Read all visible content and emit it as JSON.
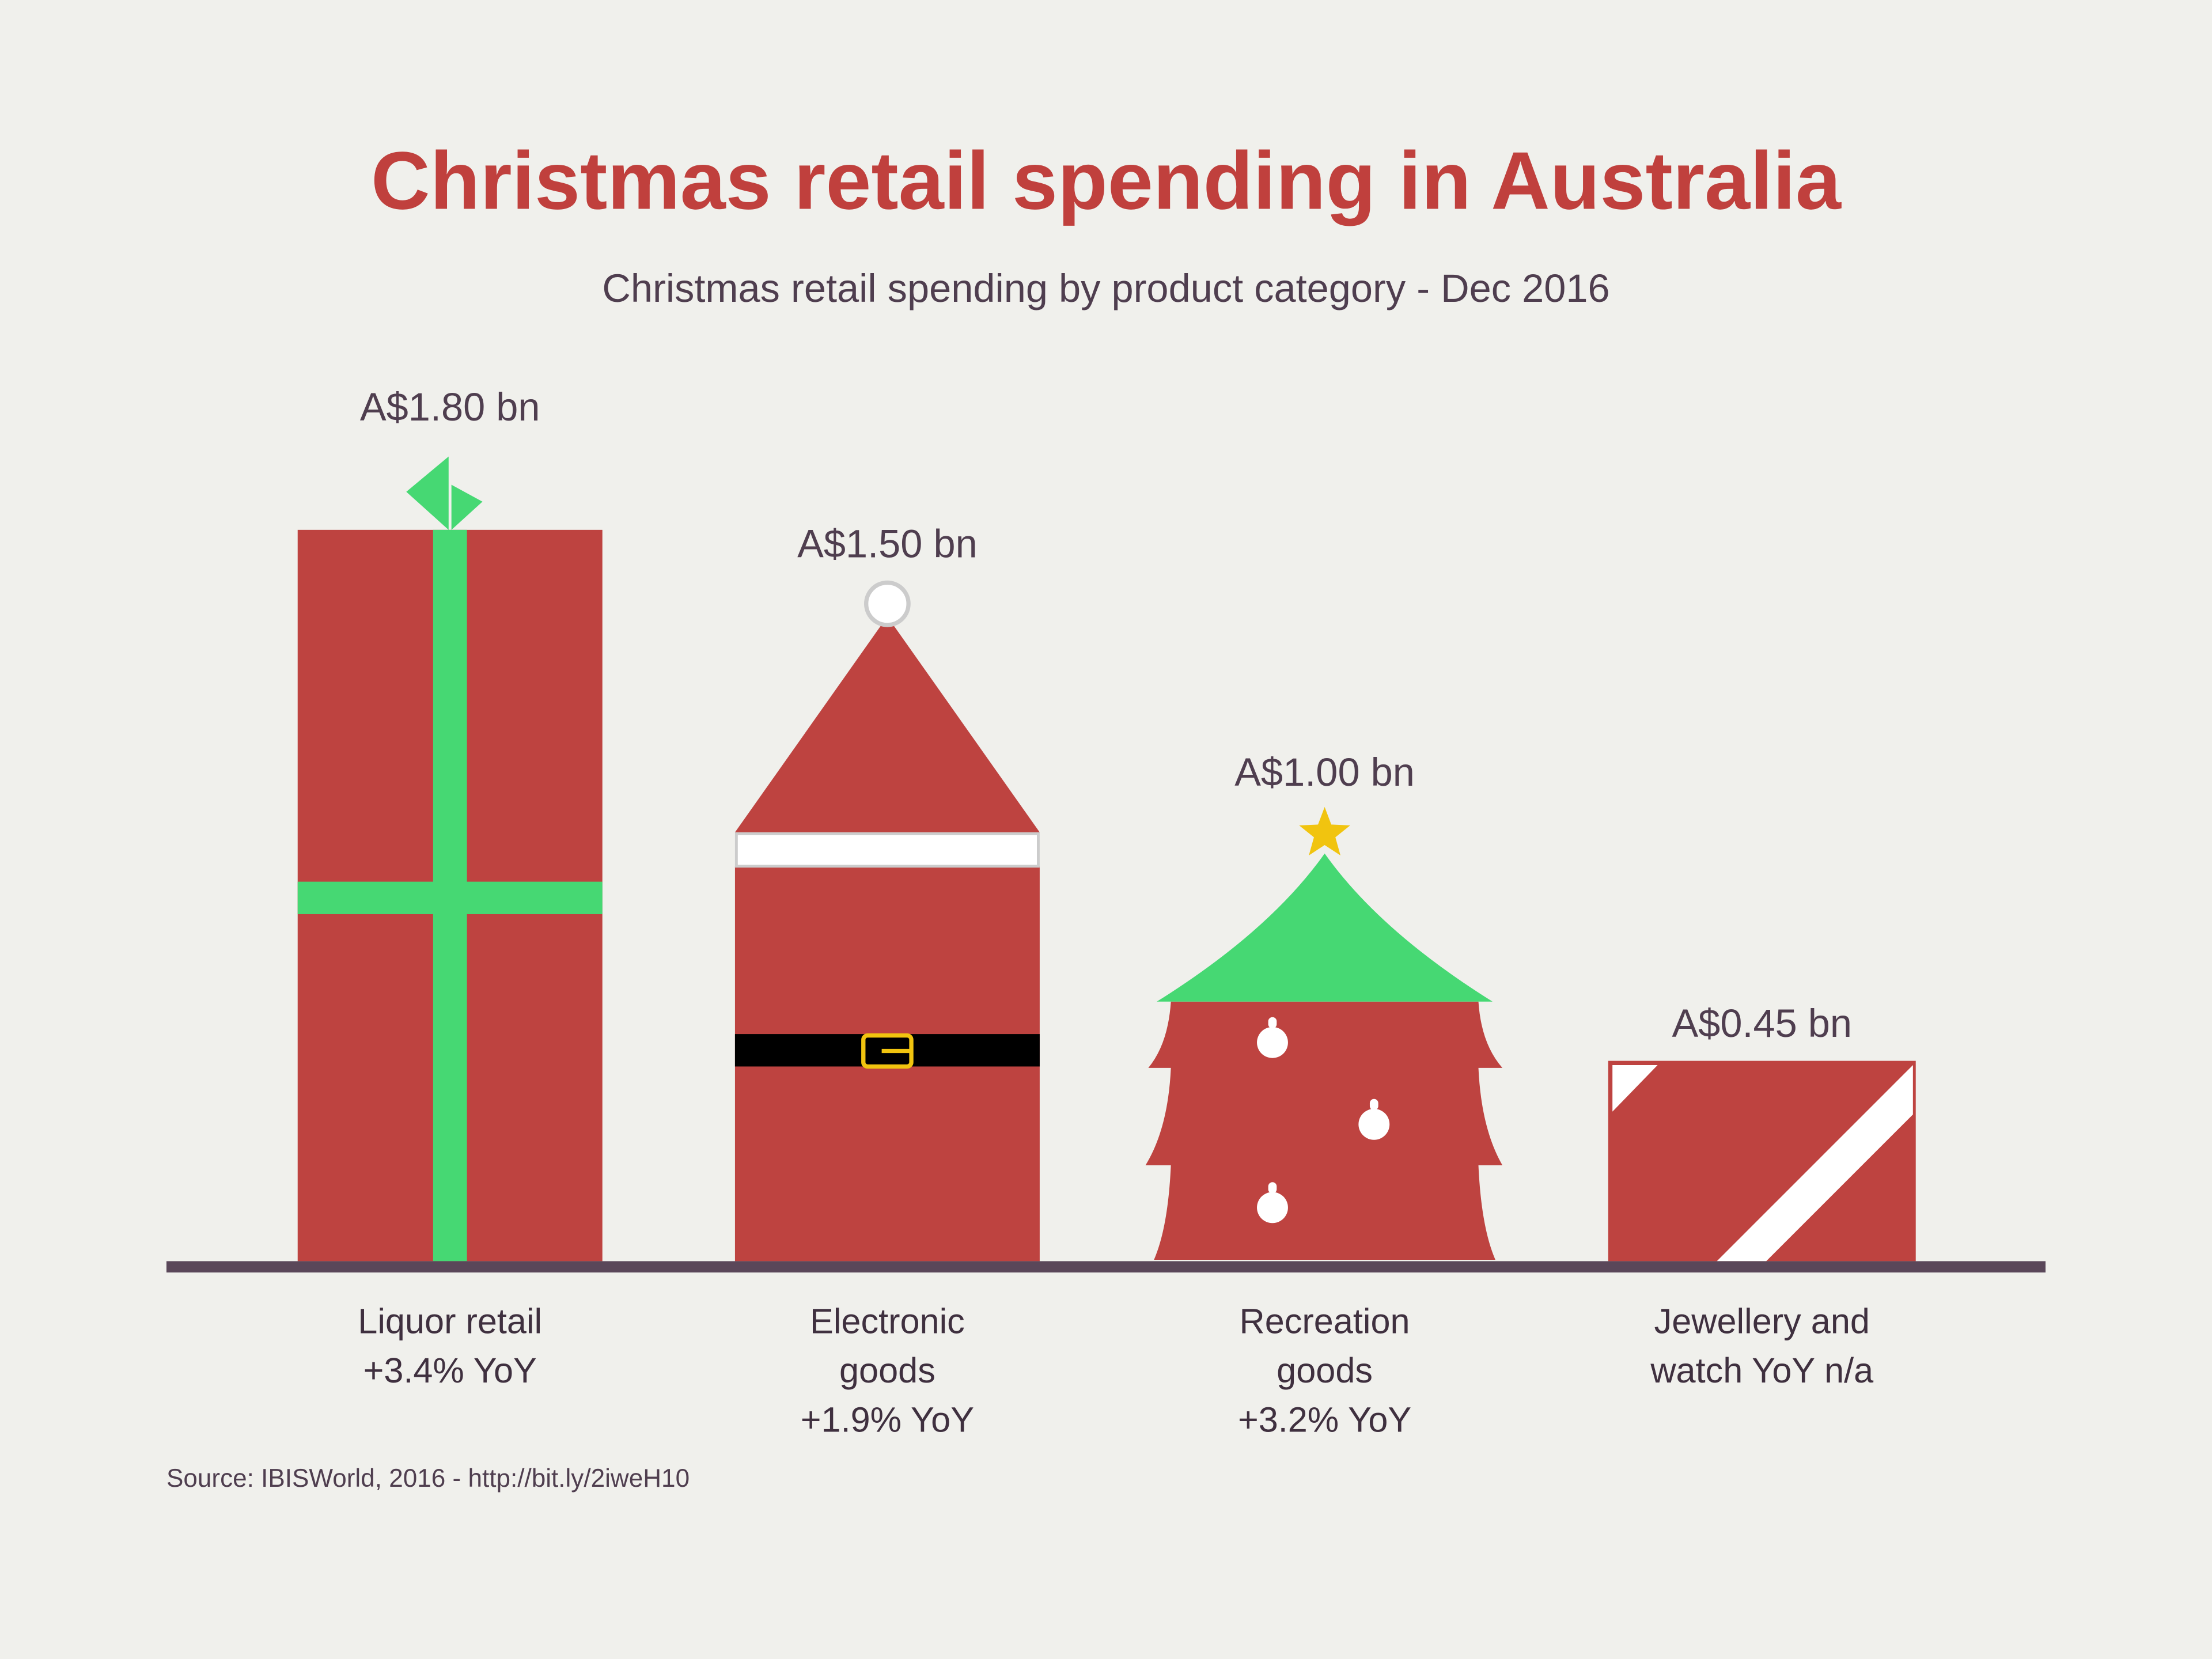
{
  "chart_data": {
    "type": "bar",
    "title": "Christmas retail spending in Australia",
    "subtitle": "Christmas retail spending by product category - Dec 2016",
    "categories": [
      [
        "Liquor retail",
        "+3.4% YoY"
      ],
      [
        "Electronic",
        "goods",
        "+1.9% YoY"
      ],
      [
        "Recreation",
        "goods",
        "+3.2% YoY"
      ],
      [
        "Jewellery and",
        "watch YoY n/a"
      ]
    ],
    "values": [
      1.8,
      1.5,
      1.0,
      0.45
    ],
    "value_labels": [
      "A$1.80 bn",
      "A$1.50 bn",
      "A$1.00 bn",
      "A$0.45 bn"
    ],
    "grid": false,
    "source": "Source: IBISWorld, 2016 - http://bit.ly/2iweH10",
    "colors": {
      "bar": "#BE4340",
      "accent_green": "#46D873",
      "axis": "#5A4759",
      "title": "#C0403D",
      "star": "#F1C40F",
      "background": "#F0F0EC"
    }
  }
}
